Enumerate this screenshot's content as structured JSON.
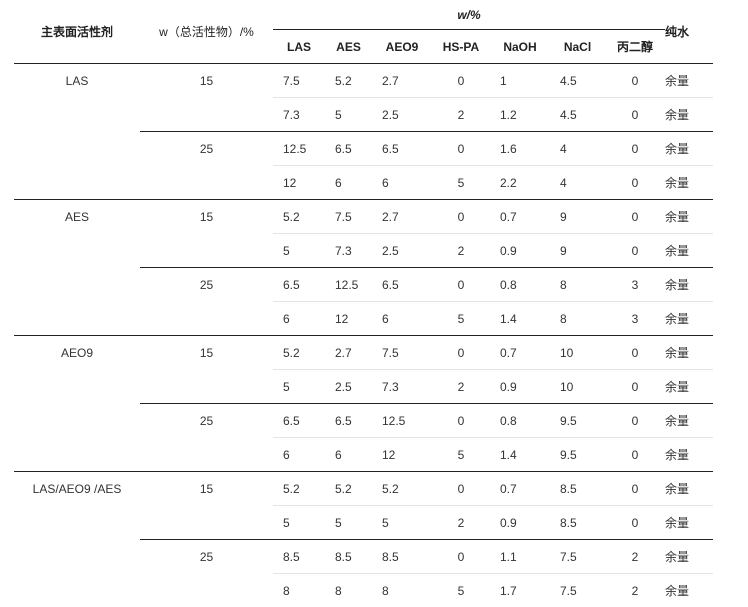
{
  "header": {
    "surfactant": "主表面活性剂",
    "total_active": "w（总活性物）/%",
    "w_percent": "w/%",
    "columns": [
      "LAS",
      "AES",
      "AEO9",
      "HS-PA",
      "NaOH",
      "NaCl",
      "丙二醇"
    ],
    "water": "纯水"
  },
  "groups": [
    {
      "surfactant": "LAS",
      "subgroups": [
        {
          "total": "15",
          "rows": [
            [
              "7.5",
              "5.2",
              "2.7",
              "0",
              "1",
              "4.5",
              "0",
              "余量"
            ],
            [
              "7.3",
              "5",
              "2.5",
              "2",
              "1.2",
              "4.5",
              "0",
              "余量"
            ]
          ]
        },
        {
          "total": "25",
          "rows": [
            [
              "12.5",
              "6.5",
              "6.5",
              "0",
              "1.6",
              "4",
              "0",
              "余量"
            ],
            [
              "12",
              "6",
              "6",
              "5",
              "2.2",
              "4",
              "0",
              "余量"
            ]
          ]
        }
      ]
    },
    {
      "surfactant": "AES",
      "subgroups": [
        {
          "total": "15",
          "rows": [
            [
              "5.2",
              "7.5",
              "2.7",
              "0",
              "0.7",
              "9",
              "0",
              "余量"
            ],
            [
              "5",
              "7.3",
              "2.5",
              "2",
              "0.9",
              "9",
              "0",
              "余量"
            ]
          ]
        },
        {
          "total": "25",
          "rows": [
            [
              "6.5",
              "12.5",
              "6.5",
              "0",
              "0.8",
              "8",
              "3",
              "余量"
            ],
            [
              "6",
              "12",
              "6",
              "5",
              "1.4",
              "8",
              "3",
              "余量"
            ]
          ]
        }
      ]
    },
    {
      "surfactant": "AEO9",
      "subgroups": [
        {
          "total": "15",
          "rows": [
            [
              "5.2",
              "2.7",
              "7.5",
              "0",
              "0.7",
              "10",
              "0",
              "余量"
            ],
            [
              "5",
              "2.5",
              "7.3",
              "2",
              "0.9",
              "10",
              "0",
              "余量"
            ]
          ]
        },
        {
          "total": "25",
          "rows": [
            [
              "6.5",
              "6.5",
              "12.5",
              "0",
              "0.8",
              "9.5",
              "0",
              "余量"
            ],
            [
              "6",
              "6",
              "12",
              "5",
              "1.4",
              "9.5",
              "0",
              "余量"
            ]
          ]
        }
      ]
    },
    {
      "surfactant": "LAS/AEO9 /AES",
      "subgroups": [
        {
          "total": "15",
          "rows": [
            [
              "5.2",
              "5.2",
              "5.2",
              "0",
              "0.7",
              "8.5",
              "0",
              "余量"
            ],
            [
              "5",
              "5",
              "5",
              "2",
              "0.9",
              "8.5",
              "0",
              "余量"
            ]
          ]
        },
        {
          "total": "25",
          "rows": [
            [
              "8.5",
              "8.5",
              "8.5",
              "0",
              "1.1",
              "7.5",
              "2",
              "余量"
            ],
            [
              "8",
              "8",
              "8",
              "5",
              "1.7",
              "7.5",
              "2",
              "余量"
            ]
          ]
        }
      ]
    }
  ]
}
